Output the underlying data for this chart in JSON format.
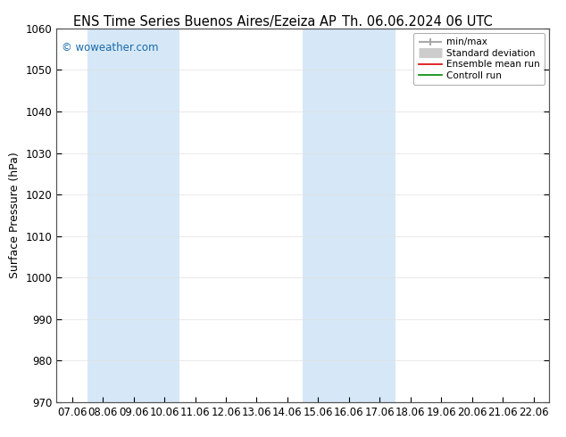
{
  "title_left": "ENS Time Series Buenos Aires/Ezeiza AP",
  "title_right": "Th. 06.06.2024 06 UTC",
  "ylabel": "Surface Pressure (hPa)",
  "ylim": [
    970,
    1060
  ],
  "yticks": [
    970,
    980,
    990,
    1000,
    1010,
    1020,
    1030,
    1040,
    1050,
    1060
  ],
  "x_labels": [
    "07.06",
    "08.06",
    "09.06",
    "10.06",
    "11.06",
    "12.06",
    "13.06",
    "14.06",
    "15.06",
    "16.06",
    "17.06",
    "18.06",
    "19.06",
    "20.06",
    "21.06",
    "22.06"
  ],
  "x_tick_positions": [
    0,
    1,
    2,
    3,
    4,
    5,
    6,
    7,
    8,
    9,
    10,
    11,
    12,
    13,
    14,
    15
  ],
  "shaded_regions": [
    {
      "xmin": 1,
      "xmax": 3,
      "color": "#d6e8f7"
    },
    {
      "xmin": 8,
      "xmax": 10,
      "color": "#d6e8f7"
    }
  ],
  "watermark": "© woweather.com",
  "watermark_color": "#1a6aab",
  "legend_entries": [
    {
      "label": "min/max",
      "color": "#aaaaaa",
      "lw": 1.2,
      "style": "minmax"
    },
    {
      "label": "Standard deviation",
      "color": "#cccccc",
      "lw": 8,
      "style": "stddev"
    },
    {
      "label": "Ensemble mean run",
      "color": "#dd0000",
      "lw": 1.2,
      "style": "line"
    },
    {
      "label": "Controll run",
      "color": "#008800",
      "lw": 1.2,
      "style": "line"
    }
  ],
  "bg_color": "#ffffff",
  "plot_bg_color": "#ffffff",
  "grid_color": "#e0e0e0",
  "border_color": "#555555",
  "title_fontsize": 10.5,
  "axis_fontsize": 9,
  "tick_fontsize": 8.5
}
